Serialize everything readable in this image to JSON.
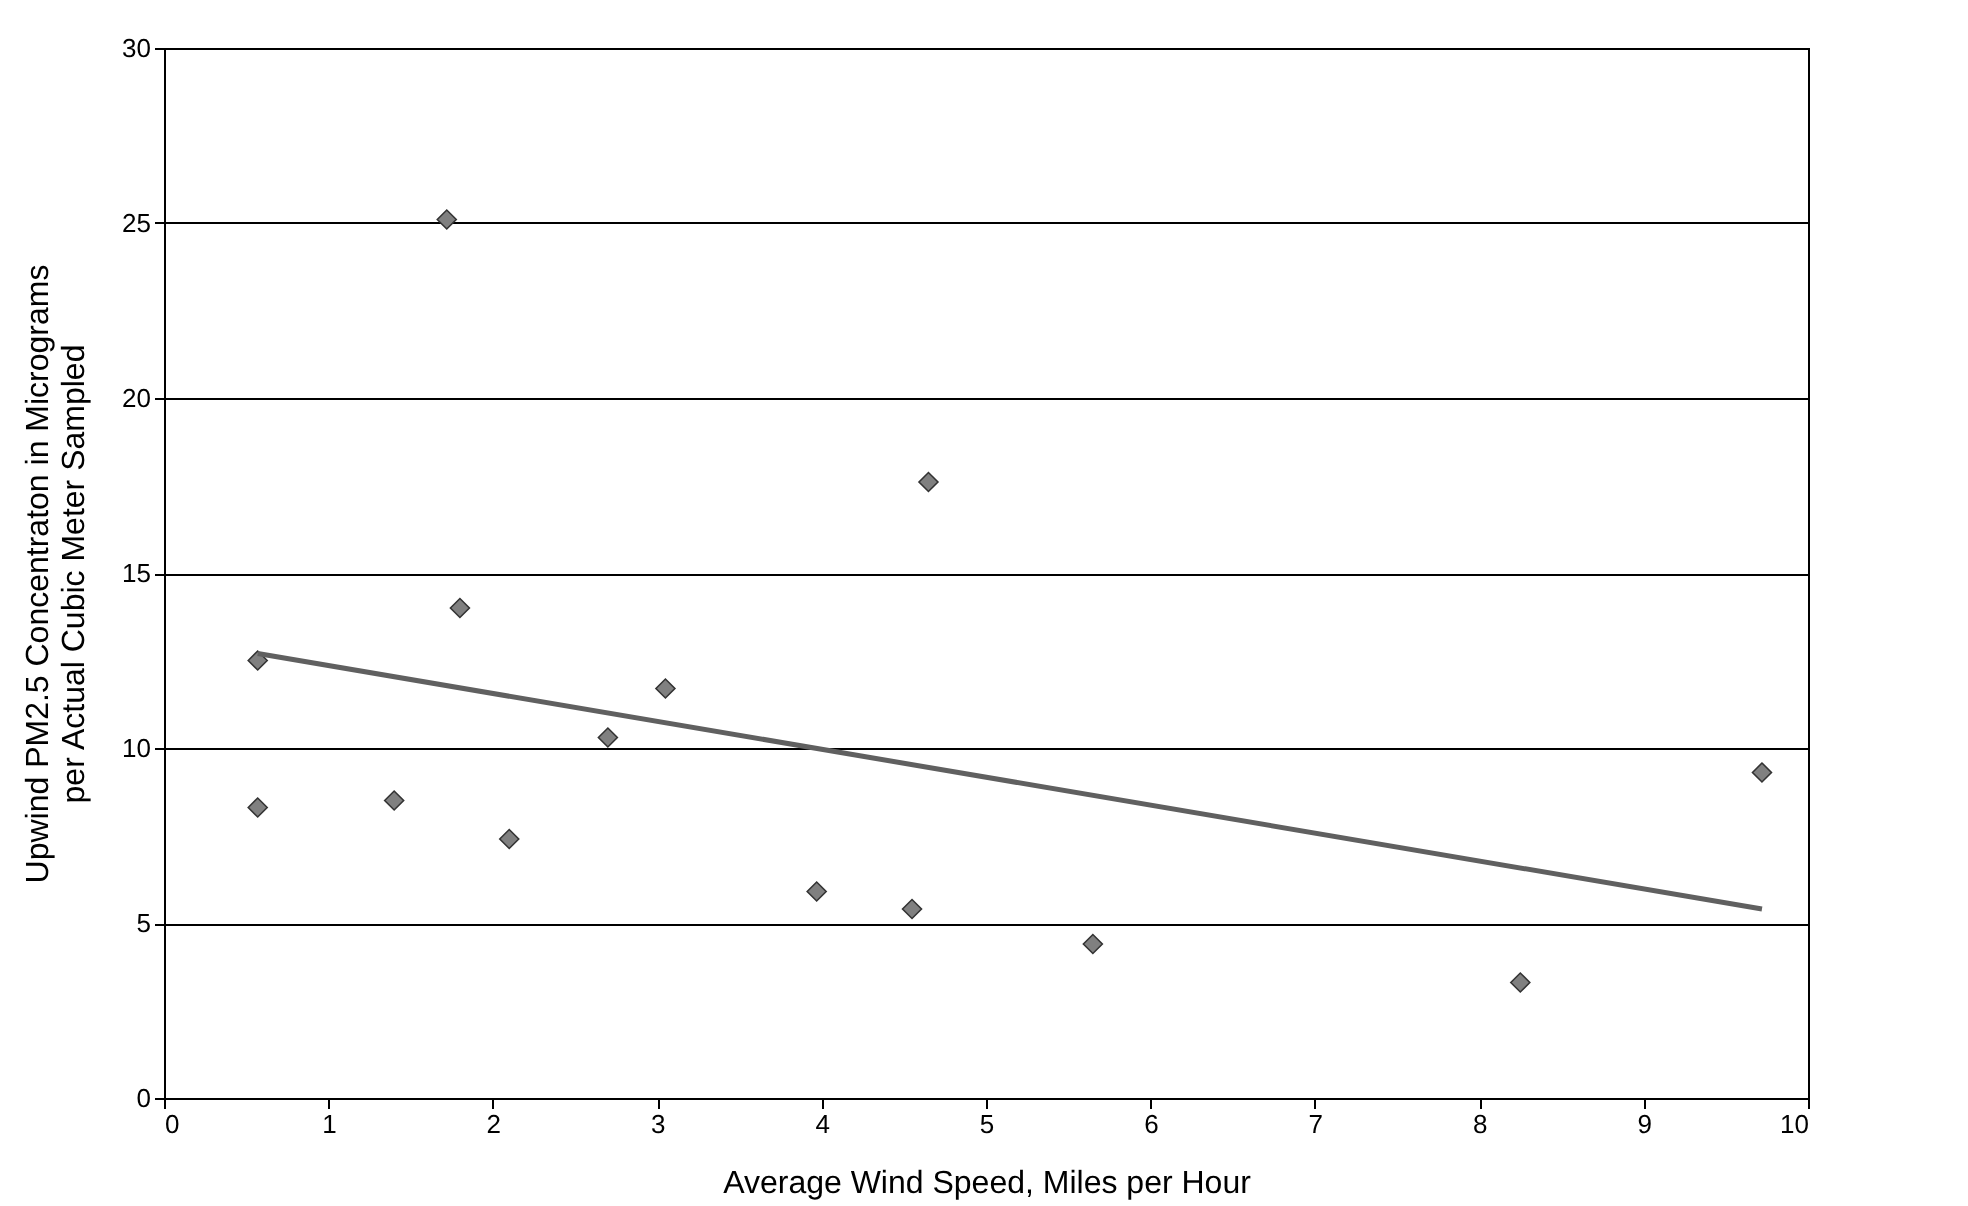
{
  "chart_data": {
    "type": "scatter",
    "xlabel": "Average Wind Speed, Miles per Hour",
    "ylabel": "Upwind PM2.5 Concentraton in Micrograms\nper Actual Cubic Meter Sampled",
    "xlim": [
      0,
      10
    ],
    "xticks": [
      0,
      1,
      2,
      3,
      4,
      5,
      6,
      7,
      8,
      9,
      10
    ],
    "ylim": [
      0,
      30
    ],
    "yticks": [
      0,
      5,
      10,
      15,
      20,
      25,
      30
    ],
    "grid": "y",
    "marker": "diamond",
    "series": [
      {
        "color": "#808080",
        "x": [
          0.57,
          0.57,
          1.4,
          1.72,
          1.8,
          2.1,
          2.7,
          3.05,
          3.97,
          4.55,
          4.65,
          5.65,
          8.25,
          9.72
        ],
        "values": [
          12.5,
          8.3,
          8.5,
          25.1,
          14.0,
          7.4,
          10.3,
          11.7,
          5.9,
          5.4,
          17.6,
          4.4,
          3.3,
          9.3
        ]
      },
      {
        "type": "line",
        "color": "#606060",
        "x": [
          0.57,
          9.72
        ],
        "values": [
          12.7,
          5.4
        ],
        "marker": "none"
      }
    ]
  }
}
